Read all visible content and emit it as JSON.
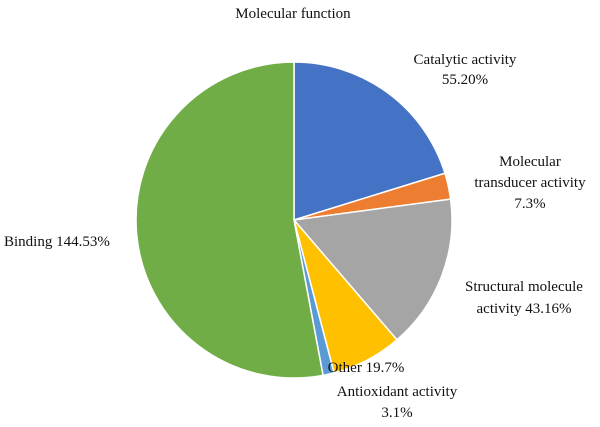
{
  "chart_data": {
    "type": "pie",
    "title": "Molecular function",
    "start_angle_deg": 0,
    "direction": "clockwise",
    "slices": [
      {
        "label": "Catalytic activity",
        "value_label": "55.20%",
        "value": 55.2,
        "color": "#4472C4"
      },
      {
        "label": "Molecular transducer activity",
        "value_label": "7.3%",
        "value": 7.3,
        "color": "#ED7D31"
      },
      {
        "label": "Structural molecule activity",
        "value_label": "43.16%",
        "value": 43.16,
        "color": "#A5A5A5"
      },
      {
        "label": "Other",
        "value_label": "19.7%",
        "value": 19.7,
        "color": "#FFC000"
      },
      {
        "label": "Antioxidant activity",
        "value_label": "3.1%",
        "value": 3.1,
        "color": "#5B9BD5"
      },
      {
        "label": "Binding",
        "value_label": "144.53%",
        "value": 144.53,
        "color": "#70AD47"
      }
    ],
    "data_labels": [
      {
        "lines": [
          "Catalytic activity",
          "55.20%"
        ]
      },
      {
        "lines": [
          "Molecular",
          "transducer activity",
          "7.3%"
        ]
      },
      {
        "lines": [
          "Structural molecule",
          "activity 43.16%"
        ]
      },
      {
        "lines": [
          "Other 19.7%"
        ]
      },
      {
        "lines": [
          "Antioxidant activity",
          "3.1%"
        ]
      },
      {
        "lines": [
          "Binding 144.53%"
        ]
      }
    ]
  }
}
